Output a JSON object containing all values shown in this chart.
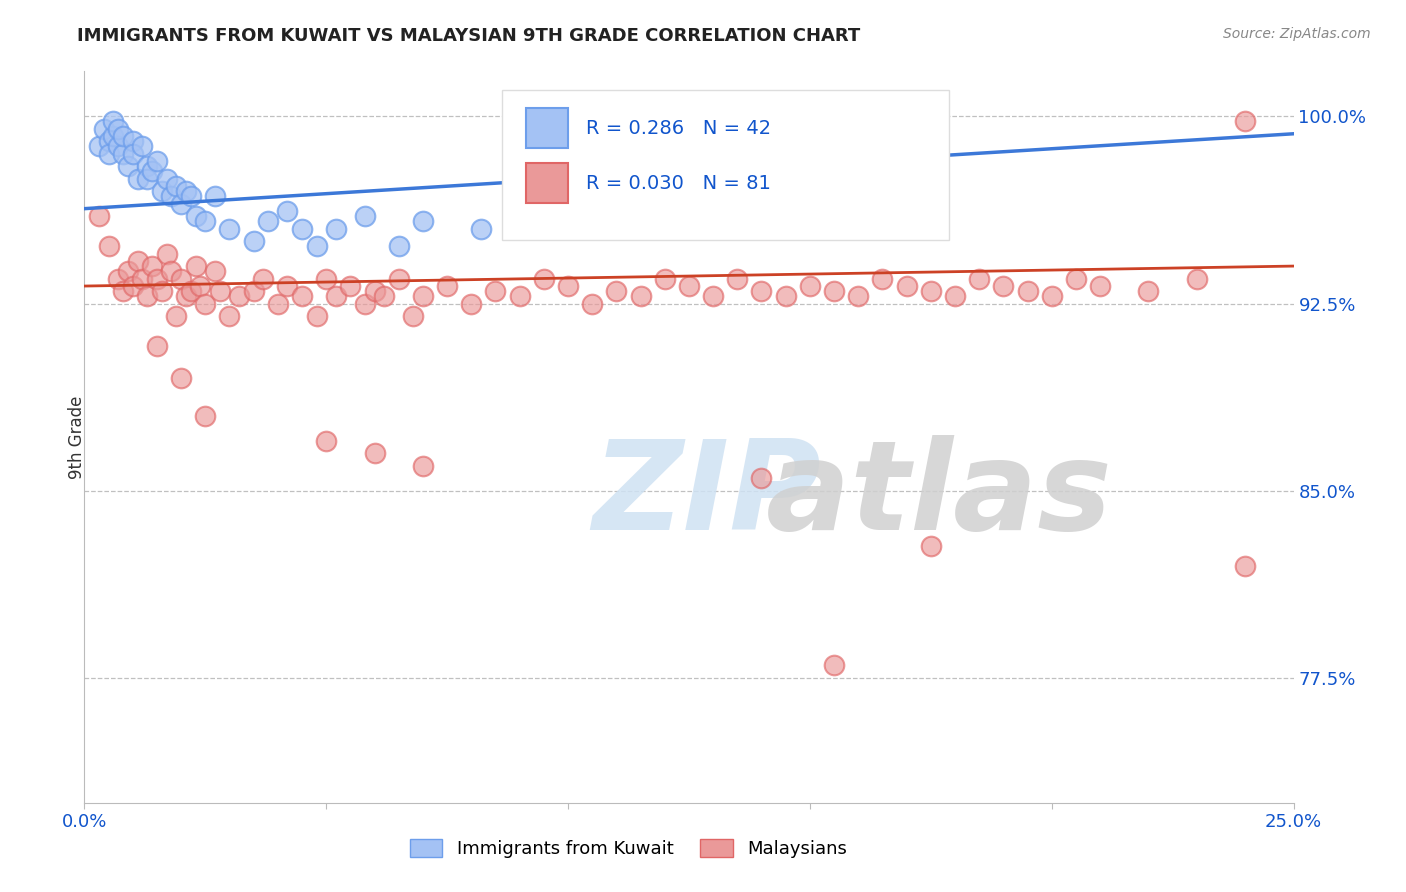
{
  "title": "IMMIGRANTS FROM KUWAIT VS MALAYSIAN 9TH GRADE CORRELATION CHART",
  "source": "Source: ZipAtlas.com",
  "ylabel": "9th Grade",
  "xlim": [
    0.0,
    0.25
  ],
  "ylim": [
    0.725,
    1.018
  ],
  "yticks": [
    0.775,
    0.85,
    0.925,
    1.0
  ],
  "ytick_labels": [
    "77.5%",
    "85.0%",
    "92.5%",
    "100.0%"
  ],
  "legend_label_blue": "Immigrants from Kuwait",
  "legend_label_pink": "Malaysians",
  "legend_r_blue": "R = 0.286",
  "legend_n_blue": "N = 42",
  "legend_r_pink": "R = 0.030",
  "legend_n_pink": "N = 81",
  "blue_face_color": "#a4c2f4",
  "blue_edge_color": "#6d9eeb",
  "pink_face_color": "#ea9999",
  "pink_edge_color": "#e06666",
  "blue_line_color": "#3c78d8",
  "pink_line_color": "#cc4125",
  "text_blue": "#1155cc",
  "watermark_zip_color": "#cfe2f3",
  "watermark_atlas_color": "#d0d0d0",
  "blue_r": 0.286,
  "pink_r": 0.03,
  "blue_n": 42,
  "pink_n": 81,
  "blue_line_y0": 0.963,
  "blue_line_y1": 0.993,
  "pink_line_y0": 0.932,
  "pink_line_y1": 0.94,
  "blue_x": [
    0.003,
    0.004,
    0.005,
    0.005,
    0.006,
    0.006,
    0.007,
    0.007,
    0.008,
    0.008,
    0.009,
    0.01,
    0.01,
    0.011,
    0.012,
    0.013,
    0.013,
    0.014,
    0.015,
    0.016,
    0.017,
    0.018,
    0.019,
    0.02,
    0.021,
    0.022,
    0.023,
    0.025,
    0.027,
    0.03,
    0.035,
    0.038,
    0.042,
    0.045,
    0.048,
    0.052,
    0.058,
    0.065,
    0.07,
    0.082,
    0.095,
    0.11
  ],
  "blue_y": [
    0.988,
    0.995,
    0.99,
    0.985,
    0.992,
    0.998,
    0.988,
    0.995,
    0.985,
    0.992,
    0.98,
    0.99,
    0.985,
    0.975,
    0.988,
    0.98,
    0.975,
    0.978,
    0.982,
    0.97,
    0.975,
    0.968,
    0.972,
    0.965,
    0.97,
    0.968,
    0.96,
    0.958,
    0.968,
    0.955,
    0.95,
    0.958,
    0.962,
    0.955,
    0.948,
    0.955,
    0.96,
    0.948,
    0.958,
    0.955,
    0.96,
    0.962
  ],
  "pink_x": [
    0.003,
    0.005,
    0.007,
    0.008,
    0.009,
    0.01,
    0.011,
    0.012,
    0.013,
    0.014,
    0.015,
    0.016,
    0.017,
    0.018,
    0.019,
    0.02,
    0.021,
    0.022,
    0.023,
    0.024,
    0.025,
    0.027,
    0.028,
    0.03,
    0.032,
    0.035,
    0.037,
    0.04,
    0.042,
    0.045,
    0.048,
    0.05,
    0.052,
    0.055,
    0.058,
    0.06,
    0.062,
    0.065,
    0.068,
    0.07,
    0.075,
    0.08,
    0.085,
    0.09,
    0.095,
    0.1,
    0.105,
    0.11,
    0.115,
    0.12,
    0.125,
    0.13,
    0.135,
    0.14,
    0.145,
    0.15,
    0.155,
    0.16,
    0.165,
    0.17,
    0.175,
    0.18,
    0.185,
    0.19,
    0.195,
    0.2,
    0.205,
    0.21,
    0.22,
    0.23,
    0.24,
    0.015,
    0.02,
    0.025,
    0.05,
    0.06,
    0.07,
    0.14,
    0.175,
    0.24,
    0.155
  ],
  "pink_y": [
    0.96,
    0.948,
    0.935,
    0.93,
    0.938,
    0.932,
    0.942,
    0.935,
    0.928,
    0.94,
    0.935,
    0.93,
    0.945,
    0.938,
    0.92,
    0.935,
    0.928,
    0.93,
    0.94,
    0.932,
    0.925,
    0.938,
    0.93,
    0.92,
    0.928,
    0.93,
    0.935,
    0.925,
    0.932,
    0.928,
    0.92,
    0.935,
    0.928,
    0.932,
    0.925,
    0.93,
    0.928,
    0.935,
    0.92,
    0.928,
    0.932,
    0.925,
    0.93,
    0.928,
    0.935,
    0.932,
    0.925,
    0.93,
    0.928,
    0.935,
    0.932,
    0.928,
    0.935,
    0.93,
    0.928,
    0.932,
    0.93,
    0.928,
    0.935,
    0.932,
    0.93,
    0.928,
    0.935,
    0.932,
    0.93,
    0.928,
    0.935,
    0.932,
    0.93,
    0.935,
    0.998,
    0.908,
    0.895,
    0.88,
    0.87,
    0.865,
    0.86,
    0.855,
    0.828,
    0.82,
    0.78
  ]
}
